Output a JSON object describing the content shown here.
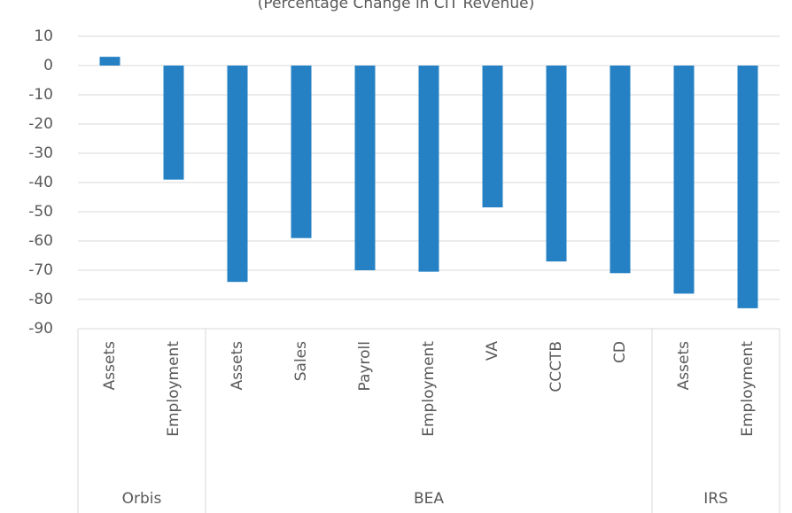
{
  "chart_data": {
    "type": "bar",
    "title": "(Percentage Change in CIT Revenue)",
    "groups": [
      {
        "name": "Orbis",
        "categories": [
          "Assets",
          "Employment"
        ]
      },
      {
        "name": "BEA",
        "categories": [
          "Assets",
          "Sales",
          "Payroll",
          "Employment",
          "VA",
          "CCCTB",
          "CD"
        ]
      },
      {
        "name": "IRS",
        "categories": [
          "Assets",
          "Employment"
        ]
      }
    ],
    "values": [
      3,
      -39,
      -74,
      -59,
      -70,
      -70.5,
      -48.5,
      -67,
      -71,
      -78,
      -83
    ],
    "color": "#2581c4",
    "ylim": [
      -90,
      10
    ],
    "yticks": [
      10,
      0,
      -10,
      -20,
      -30,
      -40,
      -50,
      -60,
      -70,
      -80,
      -90
    ],
    "grid": true
  }
}
